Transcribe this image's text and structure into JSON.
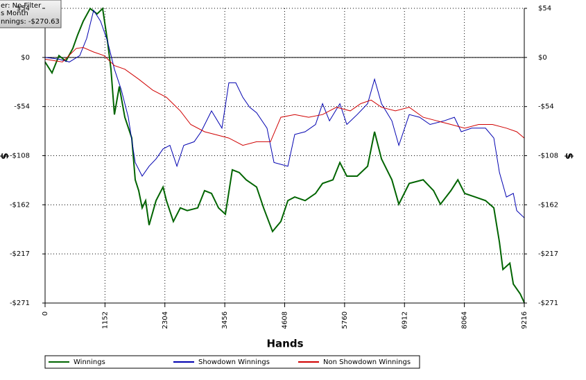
{
  "chart_data": {
    "type": "line",
    "stats": [
      "er: No Filter",
      "s Month",
      "nnings: -$270.63"
    ],
    "xlabel": "Hands",
    "ylabel": "$",
    "xlim": [
      0,
      9216
    ],
    "xticks": [
      0,
      1152,
      2304,
      3456,
      4608,
      5760,
      6912,
      8064,
      9216
    ],
    "ylim": [
      -271,
      54.2
    ],
    "yticks": [
      {
        "value": 54.2,
        "label": "$54"
      },
      {
        "value": 0,
        "label": "$0"
      },
      {
        "value": -54.2,
        "label": "-$54"
      },
      {
        "value": -108.4,
        "label": "-$108"
      },
      {
        "value": -162.6,
        "label": "-$162"
      },
      {
        "value": -216.8,
        "label": "-$217"
      },
      {
        "value": -271,
        "label": "-$271"
      }
    ],
    "grid": true,
    "series": [
      {
        "name": "Winnings",
        "color": "#006400",
        "x": [
          0,
          133,
          267,
          400,
          534,
          627,
          734,
          867,
          1000,
          1107,
          1200,
          1267,
          1334,
          1427,
          1534,
          1667,
          1734,
          1801,
          1867,
          1934,
          2001,
          2134,
          2268,
          2334,
          2468,
          2601,
          2734,
          2935,
          3068,
          3201,
          3335,
          3468,
          3601,
          3735,
          3868,
          4068,
          4202,
          4375,
          4535,
          4669,
          4802,
          5002,
          5202,
          5336,
          5536,
          5669,
          5803,
          6003,
          6203,
          6336,
          6470,
          6670,
          6803,
          7004,
          7271,
          7471,
          7604,
          7805,
          7938,
          8071,
          8271,
          8471,
          8631,
          8738,
          8805,
          8938,
          9005,
          9138,
          9216
        ],
        "values": [
          -5,
          -17,
          2,
          -4,
          10,
          25,
          40,
          54,
          48,
          54,
          18,
          -13,
          -63,
          -32,
          -66,
          -89,
          -135,
          -147,
          -166,
          -158,
          -185,
          -158,
          -143,
          -158,
          -181,
          -166,
          -169,
          -166,
          -147,
          -150,
          -166,
          -173,
          -124,
          -127,
          -135,
          -143,
          -166,
          -192,
          -181,
          -158,
          -154,
          -158,
          -150,
          -139,
          -135,
          -116,
          -131,
          -131,
          -120,
          -82,
          -112,
          -135,
          -162,
          -139,
          -135,
          -147,
          -162,
          -147,
          -135,
          -150,
          -154,
          -158,
          -166,
          -204,
          -234,
          -227,
          -250,
          -261,
          -270.6
        ]
      },
      {
        "name": "Showdown Winnings",
        "color": "#0000b0",
        "x": [
          0,
          267,
          467,
          667,
          800,
          934,
          1067,
          1200,
          1334,
          1467,
          1601,
          1734,
          1867,
          2001,
          2134,
          2268,
          2401,
          2535,
          2668,
          2868,
          3001,
          3201,
          3401,
          3535,
          3668,
          3802,
          3935,
          4068,
          4268,
          4402,
          4669,
          4802,
          5002,
          5202,
          5336,
          5469,
          5669,
          5803,
          6003,
          6203,
          6336,
          6470,
          6670,
          6803,
          7004,
          7204,
          7404,
          7671,
          7871,
          8004,
          8204,
          8471,
          8631,
          8738,
          8872,
          9005,
          9071,
          9216
        ],
        "values": [
          0,
          -2,
          -5,
          2,
          21,
          52,
          40,
          18,
          -13,
          -36,
          -66,
          -116,
          -131,
          -120,
          -112,
          -101,
          -97,
          -120,
          -97,
          -93,
          -82,
          -59,
          -78,
          -28,
          -28,
          -44,
          -55,
          -61,
          -78,
          -116,
          -120,
          -85,
          -82,
          -74,
          -51,
          -70,
          -51,
          -74,
          -63,
          -51,
          -24,
          -51,
          -70,
          -97,
          -63,
          -66,
          -74,
          -70,
          -66,
          -82,
          -78,
          -78,
          -89,
          -127,
          -154,
          -150,
          -169,
          -177
        ]
      },
      {
        "name": "Non Showdown Winnings",
        "color": "#d00000",
        "x": [
          0,
          334,
          600,
          734,
          934,
          1134,
          1334,
          1534,
          1801,
          2068,
          2334,
          2601,
          2801,
          3068,
          3268,
          3535,
          3802,
          4068,
          4335,
          4535,
          4802,
          5069,
          5336,
          5603,
          5870,
          6070,
          6270,
          6470,
          6737,
          7004,
          7271,
          7538,
          7805,
          8071,
          8338,
          8604,
          8872,
          9071,
          9216
        ],
        "values": [
          -2,
          -5,
          10,
          11,
          6,
          2,
          -9,
          -13,
          -24,
          -36,
          -44,
          -59,
          -74,
          -82,
          -85,
          -89,
          -97,
          -93,
          -93,
          -66,
          -63,
          -66,
          -63,
          -55,
          -59,
          -51,
          -47,
          -55,
          -59,
          -55,
          -66,
          -70,
          -74,
          -78,
          -74,
          -74,
          -78,
          -82,
          -89
        ]
      }
    ]
  }
}
